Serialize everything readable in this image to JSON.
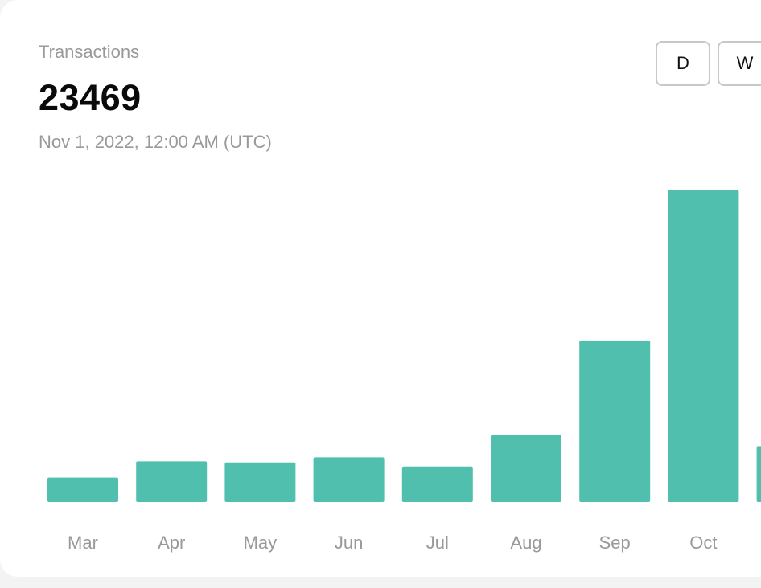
{
  "header": {
    "metric_label": "Transactions",
    "metric_value": "23469",
    "timestamp": "Nov 1, 2022, 12:00 AM (UTC)"
  },
  "period_buttons": [
    {
      "label": "D"
    },
    {
      "label": "W"
    }
  ],
  "colors": {
    "bar": "#50bfae",
    "tick_text": "#999999"
  },
  "chart_data": {
    "type": "bar",
    "categories": [
      "Mar",
      "Apr",
      "May",
      "Jun",
      "Jul",
      "Aug",
      "Sep",
      "Oct",
      ""
    ],
    "values": [
      2400,
      4000,
      3900,
      4400,
      3500,
      6600,
      15900,
      30700,
      5500
    ],
    "ylim": [
      0,
      34000
    ],
    "xlabel": "",
    "ylabel": "",
    "grid": false,
    "legend": "none"
  }
}
